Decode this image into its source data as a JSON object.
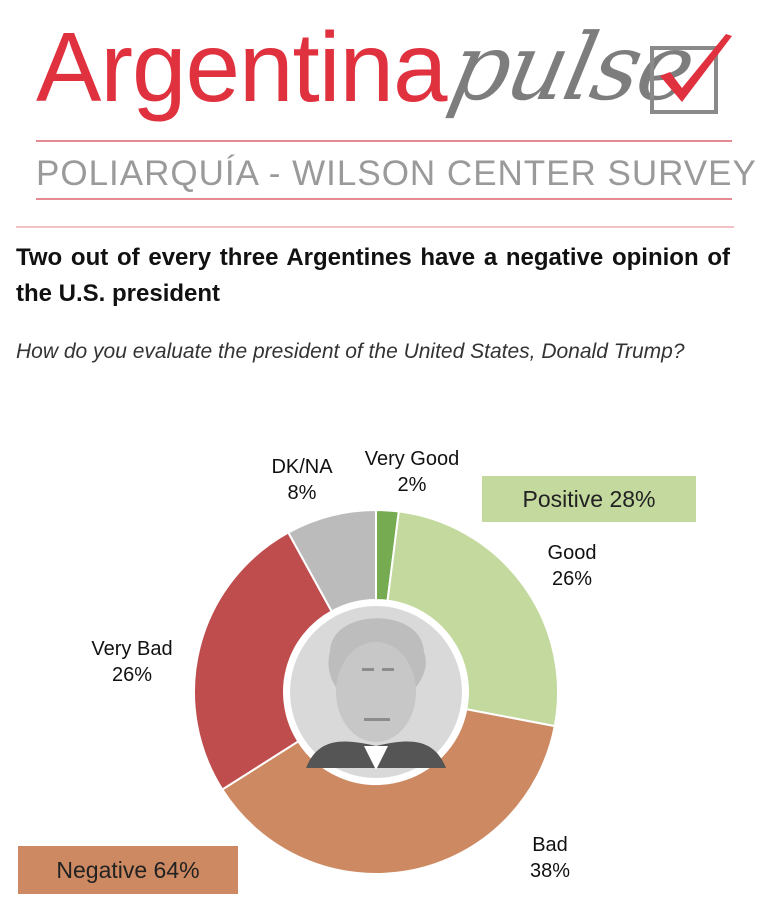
{
  "header": {
    "logo_primary": "Argentina",
    "logo_secondary": "pulse",
    "subtitle": "POLIARQUÍA - WILSON CENTER SURVEY"
  },
  "headline": "Two out of every three Argentines have a negative opinion of the U.S. president",
  "question": "How do you evaluate the president of the United States, Donald Trump?",
  "groups": {
    "positive": "Positive 28%",
    "negative": "Negative 64%"
  },
  "colors": {
    "very_good": "#76ab52",
    "good": "#c4d99e",
    "bad": "#cd8961",
    "very_bad": "#c04d4e",
    "dk_na": "#bbbbbb",
    "positive_box": "#c4d99e",
    "negative_box": "#cd8961",
    "logo_red": "#e0313f",
    "logo_gray": "#7d7d7d"
  },
  "chart_data": {
    "type": "pie",
    "subtype": "donut",
    "title": "How do you evaluate the president of the United States, Donald Trump?",
    "unit": "%",
    "slices": [
      {
        "key": "very_good",
        "label": "Very Good",
        "value": 2,
        "display": "2%"
      },
      {
        "key": "good",
        "label": "Good",
        "value": 26,
        "display": "26%"
      },
      {
        "key": "bad",
        "label": "Bad",
        "value": 38,
        "display": "38%"
      },
      {
        "key": "very_bad",
        "label": "Very Bad",
        "value": 26,
        "display": "26%"
      },
      {
        "key": "dk_na",
        "label": "DK/NA",
        "value": 8,
        "display": "8%"
      }
    ],
    "groups": [
      {
        "label": "Positive",
        "value": 28,
        "members": [
          "Very Good",
          "Good"
        ]
      },
      {
        "label": "Negative",
        "value": 64,
        "members": [
          "Bad",
          "Very Bad"
        ]
      }
    ]
  }
}
